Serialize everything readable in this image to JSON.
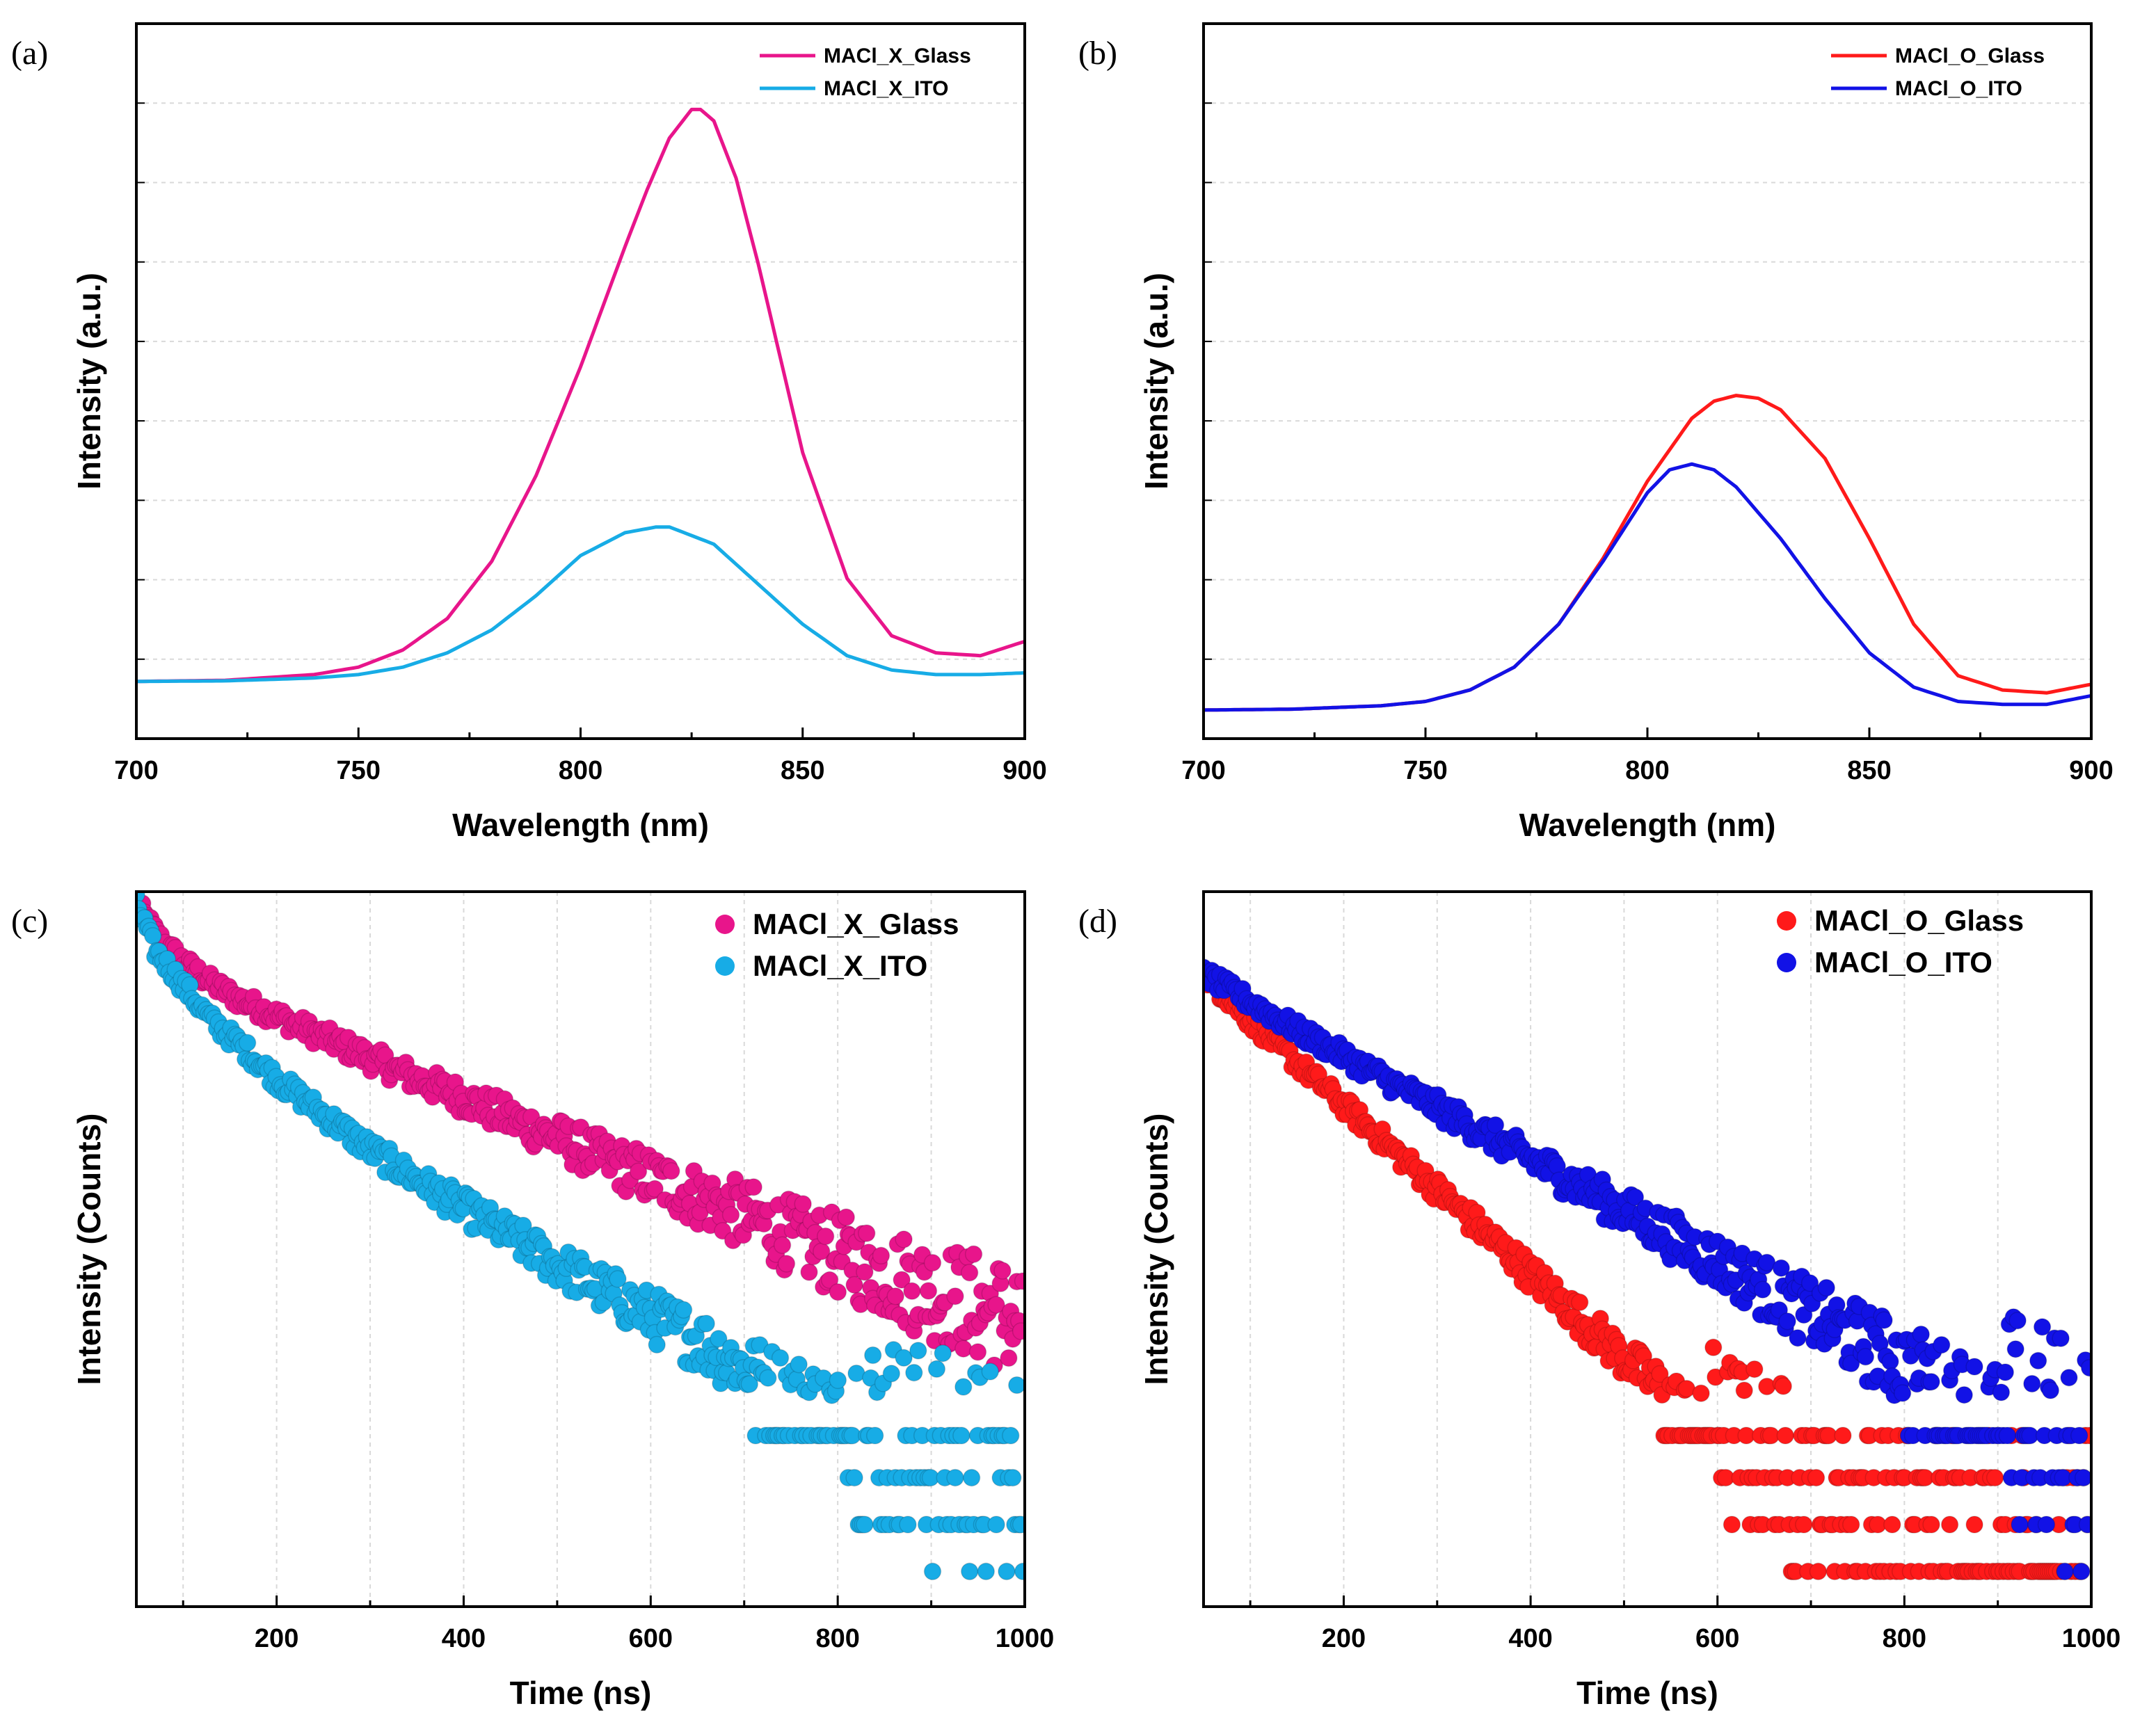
{
  "chart_data": [
    {
      "type": "line",
      "panel_label": "(a)",
      "xlabel": "Wavelength (nm)",
      "ylabel": "Intensity (a.u.)",
      "xlim": [
        700,
        900
      ],
      "ylim": [
        -0.1,
        1.15
      ],
      "xticks": [
        700,
        750,
        800,
        850,
        900
      ],
      "show_y_ticklabels": false,
      "legend_position": "top-right",
      "grid": "horizontal-dashed",
      "series": [
        {
          "name": "MACl_X_Glass",
          "color": "#E8158B",
          "x": [
            700,
            720,
            740,
            750,
            760,
            770,
            780,
            790,
            800,
            810,
            815,
            820,
            825,
            827,
            830,
            835,
            840,
            850,
            860,
            870,
            880,
            890,
            900
          ],
          "y": [
            0.0,
            0.002,
            0.012,
            0.025,
            0.055,
            0.11,
            0.21,
            0.36,
            0.55,
            0.76,
            0.86,
            0.95,
            1.0,
            1.0,
            0.98,
            0.88,
            0.73,
            0.4,
            0.18,
            0.08,
            0.05,
            0.045,
            0.07
          ]
        },
        {
          "name": "MACl_X_ITO",
          "color": "#17ACE6",
          "x": [
            700,
            720,
            740,
            750,
            760,
            770,
            780,
            790,
            800,
            810,
            817,
            820,
            830,
            840,
            850,
            860,
            870,
            880,
            890,
            900
          ],
          "y": [
            0.0,
            0.001,
            0.006,
            0.012,
            0.025,
            0.05,
            0.09,
            0.15,
            0.22,
            0.26,
            0.27,
            0.27,
            0.24,
            0.17,
            0.1,
            0.045,
            0.02,
            0.012,
            0.012,
            0.015
          ]
        }
      ]
    },
    {
      "type": "line",
      "panel_label": "(b)",
      "xlabel": "Wavelength (nm)",
      "ylabel": "Intensity (a.u.)",
      "xlim": [
        700,
        900
      ],
      "ylim": [
        -0.1,
        2.4
      ],
      "xticks": [
        700,
        750,
        800,
        850,
        900
      ],
      "show_y_ticklabels": false,
      "legend_position": "top-right",
      "grid": "horizontal-dashed",
      "series": [
        {
          "name": "MACl_O_Glass",
          "color": "#FF1A1A",
          "x": [
            700,
            720,
            740,
            750,
            760,
            770,
            780,
            790,
            800,
            810,
            815,
            820,
            825,
            830,
            840,
            850,
            860,
            870,
            880,
            890,
            900
          ],
          "y": [
            0.0,
            0.003,
            0.015,
            0.03,
            0.07,
            0.15,
            0.3,
            0.53,
            0.8,
            1.02,
            1.08,
            1.1,
            1.09,
            1.05,
            0.88,
            0.6,
            0.3,
            0.12,
            0.07,
            0.06,
            0.09
          ]
        },
        {
          "name": "MACl_O_ITO",
          "color": "#1212E6",
          "x": [
            700,
            720,
            740,
            750,
            760,
            770,
            780,
            790,
            800,
            805,
            810,
            815,
            820,
            830,
            840,
            850,
            860,
            870,
            880,
            890,
            900
          ],
          "y": [
            0.0,
            0.003,
            0.015,
            0.03,
            0.07,
            0.15,
            0.3,
            0.52,
            0.76,
            0.84,
            0.86,
            0.84,
            0.78,
            0.6,
            0.39,
            0.2,
            0.08,
            0.03,
            0.02,
            0.02,
            0.05
          ]
        }
      ]
    },
    {
      "type": "scatter",
      "panel_label": "(c)",
      "xlabel": "Time (ns)",
      "ylabel": "Intensity (Counts)",
      "xlim": [
        50,
        1000
      ],
      "xticks": [
        200,
        400,
        600,
        800,
        1000
      ],
      "y_scale": "log",
      "ylim": [
        0.6,
        3.65
      ],
      "show_y_ticklabels": false,
      "legend_position": "top-right",
      "grid": "vertical-dashed",
      "series": [
        {
          "name": "MACl_X_Glass",
          "color": "#E8158B",
          "x": [
            50,
            75,
            100,
            130,
            160,
            200,
            250,
            300,
            350,
            400,
            450,
            500,
            550,
            600,
            650,
            700,
            750,
            800,
            850,
            900,
            950,
            1000
          ],
          "y": [
            3.6,
            3.45,
            3.35,
            3.26,
            3.19,
            3.12,
            3.03,
            2.94,
            2.85,
            2.77,
            2.68,
            2.6,
            2.51,
            2.43,
            2.35,
            2.27,
            2.18,
            2.1,
            2.03,
            1.95,
            1.88,
            1.82
          ]
        },
        {
          "name": "MACl_X_ITO",
          "color": "#17ACE6",
          "x": [
            50,
            70,
            90,
            110,
            130,
            160,
            200,
            250,
            300,
            350,
            400,
            450,
            500,
            550,
            600,
            650,
            700,
            750,
            800,
            850,
            900,
            950,
            1000
          ],
          "y": [
            3.6,
            3.4,
            3.3,
            3.2,
            3.1,
            3.0,
            2.85,
            2.7,
            2.55,
            2.42,
            2.3,
            2.18,
            2.06,
            1.95,
            1.84,
            1.74,
            1.62,
            1.52,
            1.43,
            1.34,
            1.25,
            1.17,
            1.1
          ]
        }
      ]
    },
    {
      "type": "scatter",
      "panel_label": "(d)",
      "xlabel": "Time (ns)",
      "ylabel": "Intensity (Counts)",
      "xlim": [
        50,
        1000
      ],
      "xticks": [
        200,
        400,
        600,
        800,
        1000
      ],
      "y_scale": "log",
      "ylim": [
        0.6,
        3.65
      ],
      "show_y_ticklabels": false,
      "legend_position": "top-right",
      "grid": "vertical-dashed",
      "series": [
        {
          "name": "MACl_O_Glass",
          "color": "#FF1A1A",
          "x": [
            50,
            100,
            150,
            200,
            250,
            300,
            350,
            400,
            450,
            500,
            550,
            600,
            650,
            700,
            750,
            800,
            850,
            900,
            950,
            1000
          ],
          "y": [
            3.3,
            3.1,
            2.92,
            2.74,
            2.56,
            2.38,
            2.2,
            2.02,
            1.84,
            1.66,
            1.5,
            1.36,
            1.24,
            1.13,
            1.04,
            0.97,
            0.92,
            0.88,
            0.86,
            0.85
          ]
        },
        {
          "name": "MACl_O_ITO",
          "color": "#1212E6",
          "x": [
            50,
            100,
            150,
            200,
            250,
            300,
            350,
            400,
            450,
            500,
            550,
            600,
            650,
            700,
            750,
            800,
            850,
            900,
            950,
            1000
          ],
          "y": [
            3.3,
            3.18,
            3.06,
            2.95,
            2.84,
            2.73,
            2.62,
            2.51,
            2.4,
            2.29,
            2.18,
            2.07,
            1.96,
            1.85,
            1.74,
            1.63,
            1.52,
            1.42,
            1.33,
            1.25
          ]
        }
      ]
    }
  ]
}
